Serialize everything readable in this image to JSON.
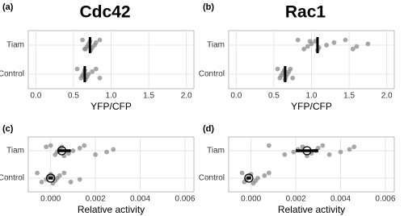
{
  "chart_data": [
    {
      "type": "strip",
      "panel_label": "(a)",
      "title": "Cdc42",
      "xlabel": "YFP/CFP",
      "categories": [
        "Tiam",
        "Control"
      ],
      "values": [
        [
          0.62,
          0.65,
          0.68,
          0.7,
          0.72,
          0.73,
          0.75,
          0.78,
          0.8,
          0.85,
          0.66,
          0.71
        ],
        [
          0.55,
          0.6,
          0.62,
          0.64,
          0.65,
          0.66,
          0.68,
          0.7,
          0.75,
          0.8,
          0.85,
          0.63
        ]
      ],
      "summary": [
        {
          "center": 0.72
        },
        {
          "center": 0.65
        }
      ],
      "xlim": [
        -0.1,
        2.1
      ],
      "xticks": [
        {
          "value": 0,
          "label": "0.0"
        },
        0.5,
        {
          "value": 1,
          "label": "1.0"
        },
        1.5,
        {
          "value": 2,
          "label": "2.0"
        }
      ],
      "grid": true,
      "color": "#8a8a8a"
    },
    {
      "type": "strip",
      "panel_label": "(b)",
      "title": "Rac1",
      "xlabel": "YFP/CFP",
      "categories": [
        "Tiam",
        "Control"
      ],
      "values": [
        [
          0.82,
          0.9,
          0.95,
          1.0,
          1.05,
          1.08,
          1.1,
          1.2,
          1.3,
          1.45,
          1.55,
          1.6,
          1.75,
          0.98
        ],
        [
          0.55,
          0.58,
          0.6,
          0.62,
          0.64,
          0.65,
          0.66,
          0.68,
          0.7,
          0.72,
          0.75
        ]
      ],
      "summary": [
        {
          "center": 1.08
        },
        {
          "center": 0.65
        }
      ],
      "xlim": [
        -0.1,
        2.1
      ],
      "xticks": [
        {
          "value": 0,
          "label": "0.0"
        },
        0.5,
        {
          "value": 1,
          "label": "1.0"
        },
        1.5,
        {
          "value": 2,
          "label": "2.0"
        }
      ],
      "grid": true,
      "color": "#8a8a8a"
    },
    {
      "type": "strip",
      "panel_label": "(c)",
      "xlabel": "Relative activity",
      "categories": [
        "Tiam",
        "Control"
      ],
      "values": [
        [
          0.0,
          0.0002,
          0.0003,
          0.0004,
          0.0005,
          0.0006,
          0.0008,
          0.001,
          0.0013,
          0.0015,
          0.002,
          0.0025,
          0.0028,
          -0.0002
        ],
        [
          -0.0006,
          -0.0004,
          -0.0002,
          -0.0001,
          0,
          0.0001,
          0.0002,
          0.0003,
          0.0004,
          0.0006,
          0.0009,
          0.0013,
          0.0001
        ]
      ],
      "summary": [
        {
          "center": 0.0005,
          "low": 0.0003,
          "high": 0.0009
        },
        {
          "center": 0.0,
          "low": -0.0001,
          "high": 0.0001
        }
      ],
      "xlim": [
        -0.001,
        0.0064
      ],
      "xticks": [
        {
          "value": 0,
          "label": "0.000"
        },
        0.002,
        0.004,
        0.006
      ],
      "grid": true,
      "color": "#8a8a8a"
    },
    {
      "type": "strip",
      "panel_label": "(d)",
      "xlabel": "Relative activity",
      "categories": [
        "Tiam",
        "Control"
      ],
      "values": [
        [
          0.0008,
          0.0015,
          0.0019,
          0.0021,
          0.0023,
          0.0025,
          0.0027,
          0.0029,
          0.003,
          0.0032,
          0.0035,
          0.004,
          0.0044,
          0.0046
        ],
        [
          -0.0004,
          -0.0003,
          -0.0002,
          -0.0001,
          0,
          0.0001,
          0.0002,
          0.0003,
          0.0006,
          0.0008
        ]
      ],
      "summary": [
        {
          "center": 0.0025,
          "low": 0.002,
          "high": 0.003
        },
        {
          "center": -0.0001,
          "low": -0.0002,
          "high": 0.0
        }
      ],
      "xlim": [
        -0.001,
        0.0064
      ],
      "xticks": [
        {
          "value": 0,
          "label": "0.000"
        },
        0.002,
        0.004,
        0.006
      ],
      "grid": true,
      "color": "#8a8a8a"
    }
  ]
}
